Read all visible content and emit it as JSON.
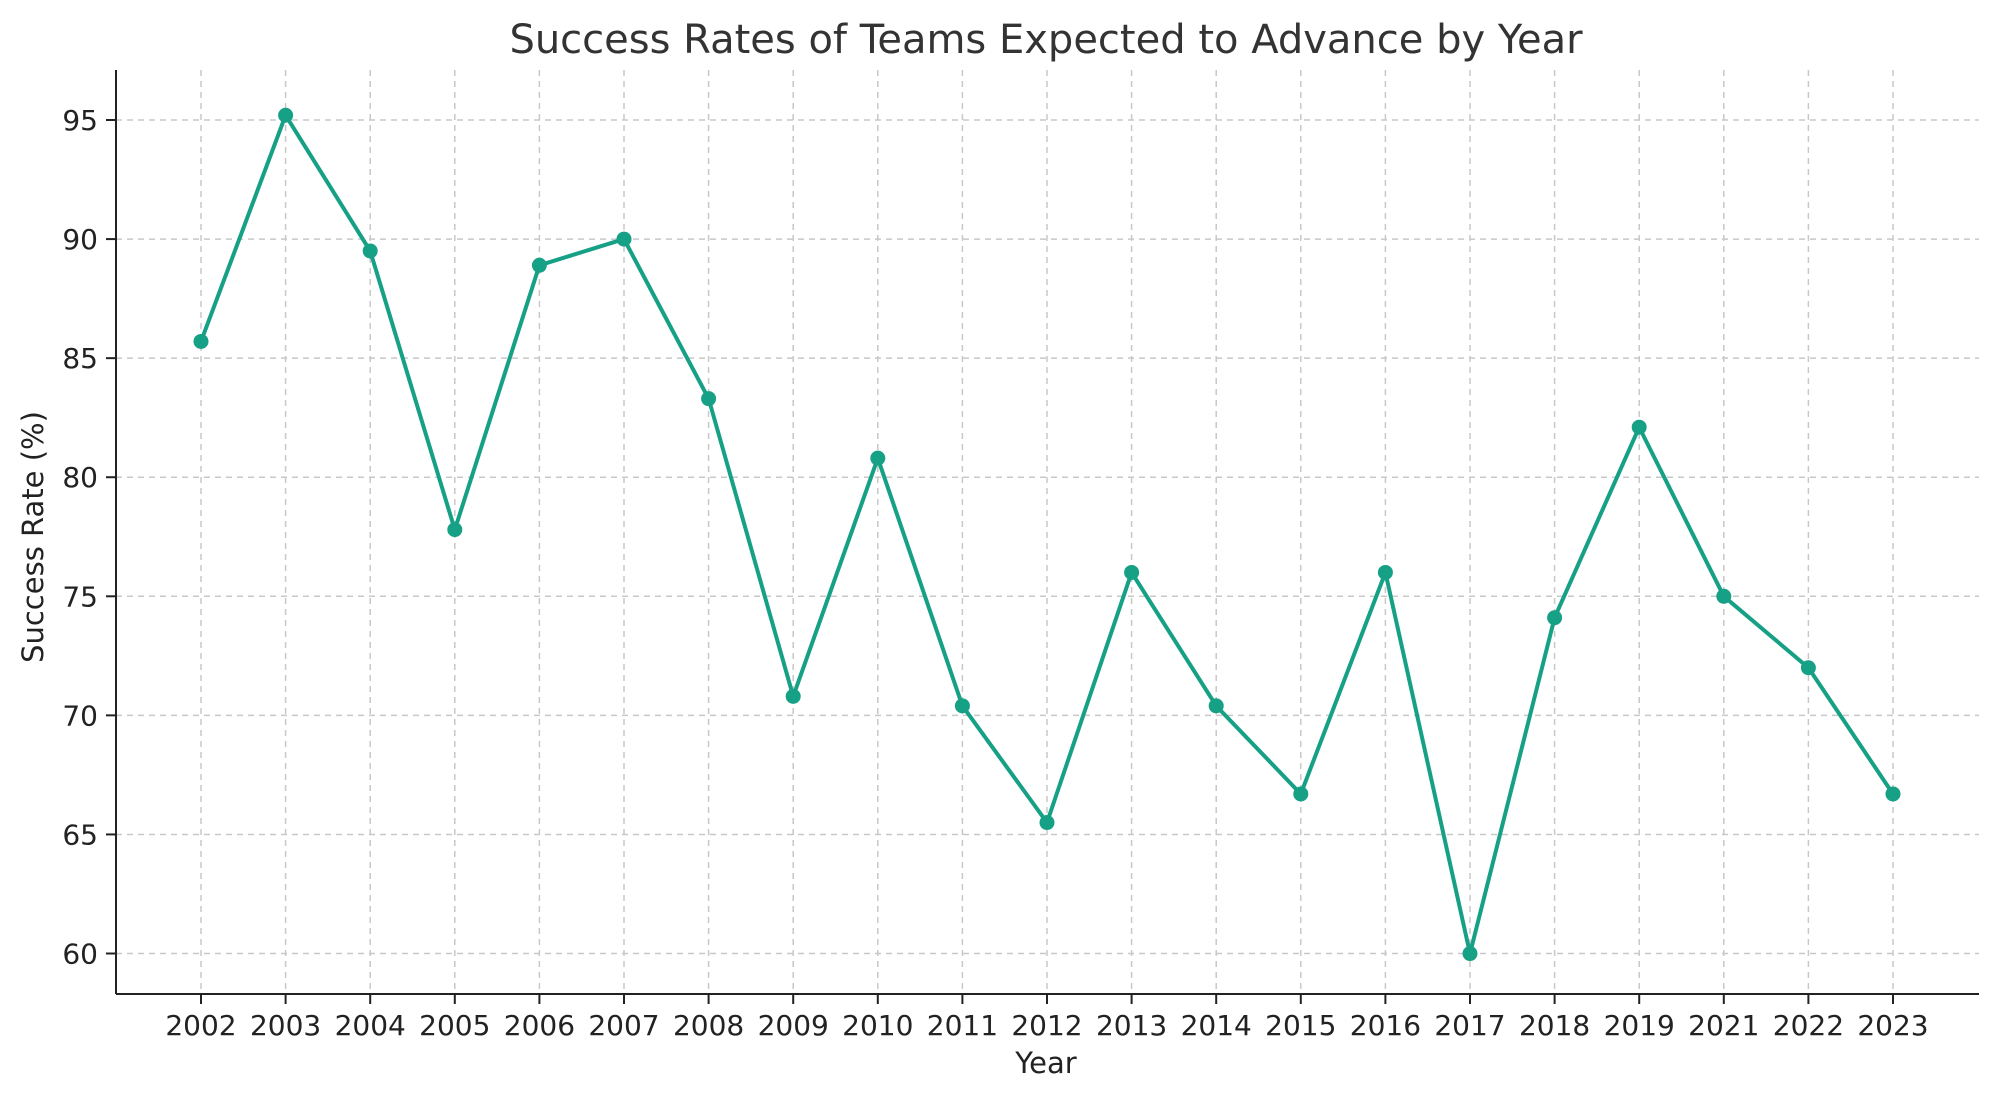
{
  "chart_data": {
    "type": "line",
    "title": "Success Rates of Teams Expected to Advance by Year",
    "xlabel": "Year",
    "ylabel": "Success Rate (%)",
    "categories": [
      "2002",
      "2003",
      "2004",
      "2005",
      "2006",
      "2007",
      "2008",
      "2009",
      "2010",
      "2011",
      "2012",
      "2013",
      "2014",
      "2015",
      "2016",
      "2017",
      "2018",
      "2019",
      "2021",
      "2022",
      "2023"
    ],
    "series": [
      {
        "values": [
          85.7,
          95.2,
          89.5,
          77.8,
          88.9,
          90.0,
          83.3,
          70.8,
          80.8,
          70.4,
          65.5,
          76.0,
          70.4,
          66.7,
          76.0,
          60.0,
          74.1,
          82.1,
          75.0,
          72.0,
          66.7
        ],
        "color": "#16a085"
      }
    ],
    "ylim": [
      58.3,
      97.1
    ],
    "yticks": [
      60,
      65,
      70,
      75,
      80,
      85,
      90,
      95
    ],
    "grid": true,
    "legend": "none"
  }
}
